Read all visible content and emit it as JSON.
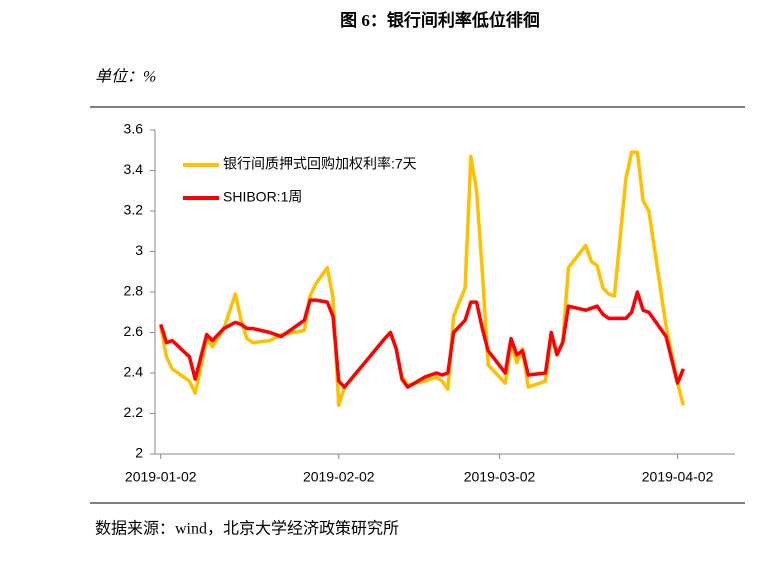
{
  "chart_data": {
    "type": "line",
    "title": "图 6：银行间利率低位徘徊",
    "unit_label": "单位：%",
    "source": "数据来源：wind，北京大学经济政策研究所",
    "x": [
      "2019-01-02",
      "2019-01-03",
      "2019-01-04",
      "2019-01-07",
      "2019-01-08",
      "2019-01-10",
      "2019-01-11",
      "2019-01-13",
      "2019-01-15",
      "2019-01-16",
      "2019-01-17",
      "2019-01-18",
      "2019-01-21",
      "2019-01-23",
      "2019-01-27",
      "2019-01-28",
      "2019-01-29",
      "2019-01-31",
      "2019-02-01",
      "2019-02-02",
      "2019-02-03",
      "2019-02-10",
      "2019-02-11",
      "2019-02-12",
      "2019-02-13",
      "2019-02-14",
      "2019-02-17",
      "2019-02-19",
      "2019-02-20",
      "2019-02-21",
      "2019-02-22",
      "2019-02-24",
      "2019-02-25",
      "2019-02-26",
      "2019-02-27",
      "2019-02-28",
      "2019-03-03",
      "2019-03-04",
      "2019-03-05",
      "2019-03-06",
      "2019-03-07",
      "2019-03-10",
      "2019-03-11",
      "2019-03-12",
      "2019-03-13",
      "2019-03-14",
      "2019-03-17",
      "2019-03-18",
      "2019-03-19",
      "2019-03-20",
      "2019-03-21",
      "2019-03-22",
      "2019-03-24",
      "2019-03-25",
      "2019-03-26",
      "2019-03-27",
      "2019-03-28",
      "2019-03-31",
      "2019-04-02",
      "2019-04-03"
    ],
    "series": [
      {
        "name": "银行间质押式回购加权利率:7天",
        "color": "#ffc000",
        "values": [
          2.63,
          2.48,
          2.42,
          2.36,
          2.3,
          2.57,
          2.53,
          2.62,
          2.79,
          2.66,
          2.57,
          2.55,
          2.56,
          2.59,
          2.61,
          2.78,
          2.84,
          2.92,
          2.77,
          2.24,
          2.33,
          2.57,
          2.6,
          2.52,
          2.38,
          2.34,
          2.36,
          2.38,
          2.36,
          2.32,
          2.68,
          2.82,
          3.47,
          3.3,
          2.9,
          2.44,
          2.35,
          2.55,
          2.45,
          2.52,
          2.33,
          2.36,
          2.59,
          2.5,
          2.55,
          2.92,
          3.03,
          2.95,
          2.93,
          2.82,
          2.79,
          2.78,
          3.36,
          3.49,
          3.49,
          3.25,
          3.2,
          2.63,
          2.35,
          2.24
        ]
      },
      {
        "name": "SHIBOR:1周",
        "color": "#ff0000",
        "values": [
          2.64,
          2.55,
          2.56,
          2.48,
          2.37,
          2.59,
          2.56,
          2.62,
          2.65,
          2.64,
          2.62,
          2.62,
          2.6,
          2.58,
          2.66,
          2.76,
          2.76,
          2.75,
          2.68,
          2.36,
          2.33,
          2.57,
          2.6,
          2.52,
          2.37,
          2.33,
          2.38,
          2.4,
          2.39,
          2.4,
          2.6,
          2.66,
          2.75,
          2.75,
          2.62,
          2.51,
          2.4,
          2.57,
          2.49,
          2.51,
          2.39,
          2.4,
          2.6,
          2.49,
          2.55,
          2.73,
          2.71,
          2.72,
          2.73,
          2.69,
          2.67,
          2.67,
          2.67,
          2.7,
          2.8,
          2.71,
          2.7,
          2.58,
          2.35,
          2.42
        ]
      }
    ],
    "xlim": [
      "2019-01-01",
      "2019-04-12"
    ],
    "xticks": [
      "2019-01-02",
      "2019-02-02",
      "2019-03-02",
      "2019-04-02"
    ],
    "ylim": [
      2,
      3.6
    ],
    "yticks": [
      2,
      2.2,
      2.4,
      2.6,
      2.8,
      3,
      3.2,
      3.4,
      3.6
    ],
    "grid": false,
    "legend": "upper left"
  }
}
